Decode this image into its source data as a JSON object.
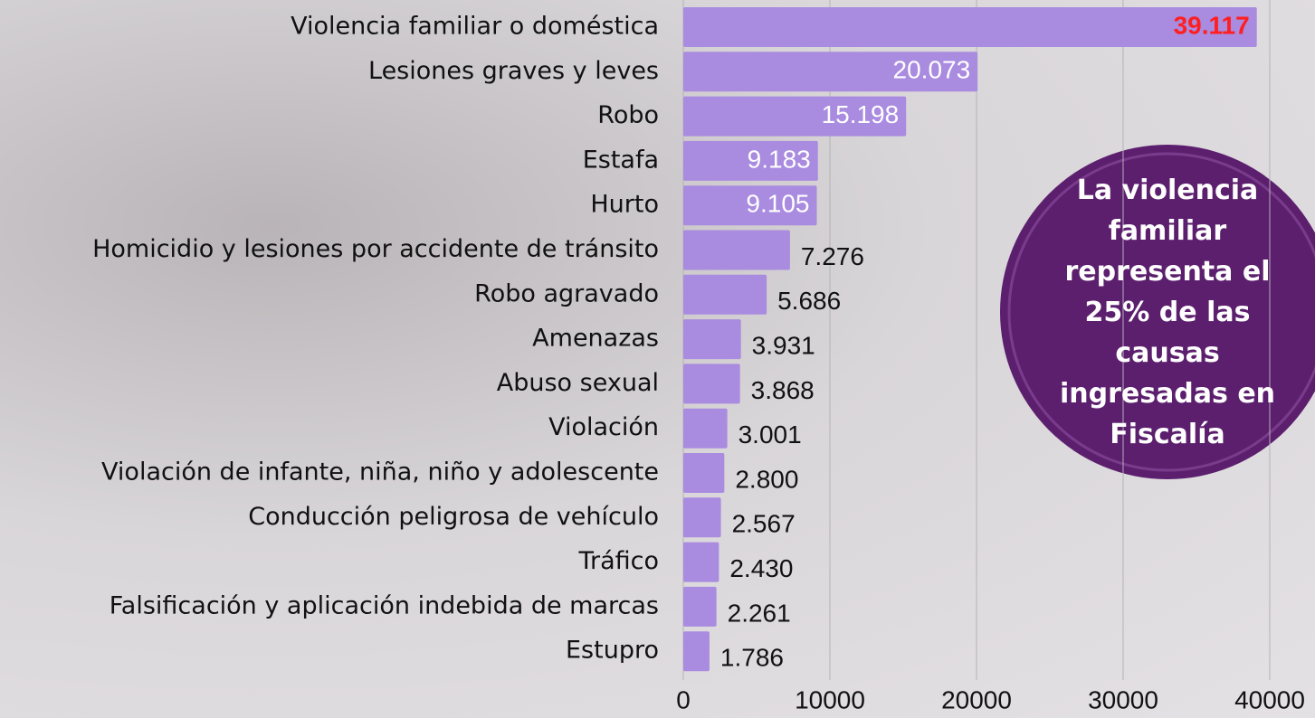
{
  "chart_data": {
    "type": "barh",
    "categories": [
      "Violencia familiar o doméstica",
      "Lesiones graves y leves",
      "Robo",
      "Estafa",
      "Hurto",
      "Homicidio y lesiones por accidente de tránsito",
      "Robo agravado",
      "Amenazas",
      "Abuso sexual",
      "Violación",
      "Violación de infante, niña, niño y adolescente",
      "Conducción peligrosa de vehículo",
      "Tráfico",
      "Falsificación y aplicación indebida de marcas",
      "Estupro"
    ],
    "values": [
      39117,
      20073,
      15198,
      9183,
      9105,
      7276,
      5686,
      3931,
      3868,
      3001,
      2800,
      2567,
      2430,
      2261,
      1786
    ],
    "value_labels": [
      "39.117",
      "20.073",
      "15.198",
      "9.183",
      "9.105",
      "7.276",
      "5.686",
      "3.931",
      "3.868",
      "3.001",
      "2.800",
      "2.567",
      "2.430",
      "2.261",
      "1.786"
    ],
    "color": "#a98be0",
    "highlight": {
      "index": 0,
      "color": "#ff1f1f"
    },
    "xlim": [
      0,
      40000
    ],
    "xticks": [
      0,
      10000,
      20000,
      30000,
      40000
    ],
    "grid": true,
    "annotation": "La violencia familiar representa el 25% de las causas ingresadas en Fiscalía"
  }
}
